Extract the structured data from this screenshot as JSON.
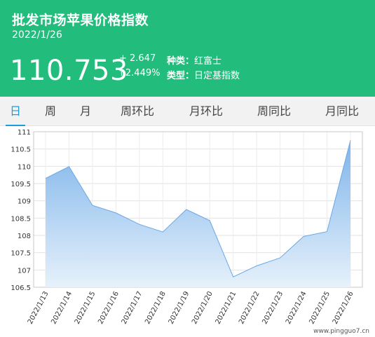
{
  "header": {
    "title": "批发市场苹果价格指数",
    "date": "2022/1/26",
    "price": "110.753",
    "change_abs": "+ 2.647",
    "change_pct": "↑2.449%",
    "variety_label": "种类：",
    "variety_value": "红富士",
    "type_label": "类型：",
    "type_value": "日定基指数"
  },
  "tabs": [
    {
      "label": "日",
      "active": true
    },
    {
      "label": "周",
      "active": false
    },
    {
      "label": "月",
      "active": false
    },
    {
      "label": "周环比",
      "active": false
    },
    {
      "label": "月环比",
      "active": false
    },
    {
      "label": "周同比",
      "active": false
    },
    {
      "label": "月同比",
      "active": false
    }
  ],
  "colors": {
    "header_bg": "#22bd7c",
    "active_tab": "#1f9bd6",
    "area_fill_top": "#7fb4ea",
    "area_fill_bottom": "#e6f1fb",
    "line": "#6aa8e6"
  },
  "chart_data": {
    "type": "area",
    "x": [
      "2022/1/13",
      "2022/1/14",
      "2022/1/15",
      "2022/1/16",
      "2022/1/17",
      "2022/1/18",
      "2022/1/19",
      "2022/1/20",
      "2022/1/21",
      "2022/1/22",
      "2022/1/23",
      "2022/1/24",
      "2022/1/25",
      "2022/1/26"
    ],
    "values": [
      109.65,
      109.99,
      108.87,
      108.65,
      108.32,
      108.1,
      108.75,
      108.43,
      106.8,
      107.12,
      107.35,
      107.97,
      108.11,
      110.753
    ],
    "yticks": [
      "111",
      "110.5",
      "110",
      "109.5",
      "109",
      "108.5",
      "108",
      "107.5",
      "107",
      "106.5"
    ],
    "ylim": [
      106.5,
      111
    ],
    "grid": true
  },
  "watermark": "www.pingguo7.cn"
}
